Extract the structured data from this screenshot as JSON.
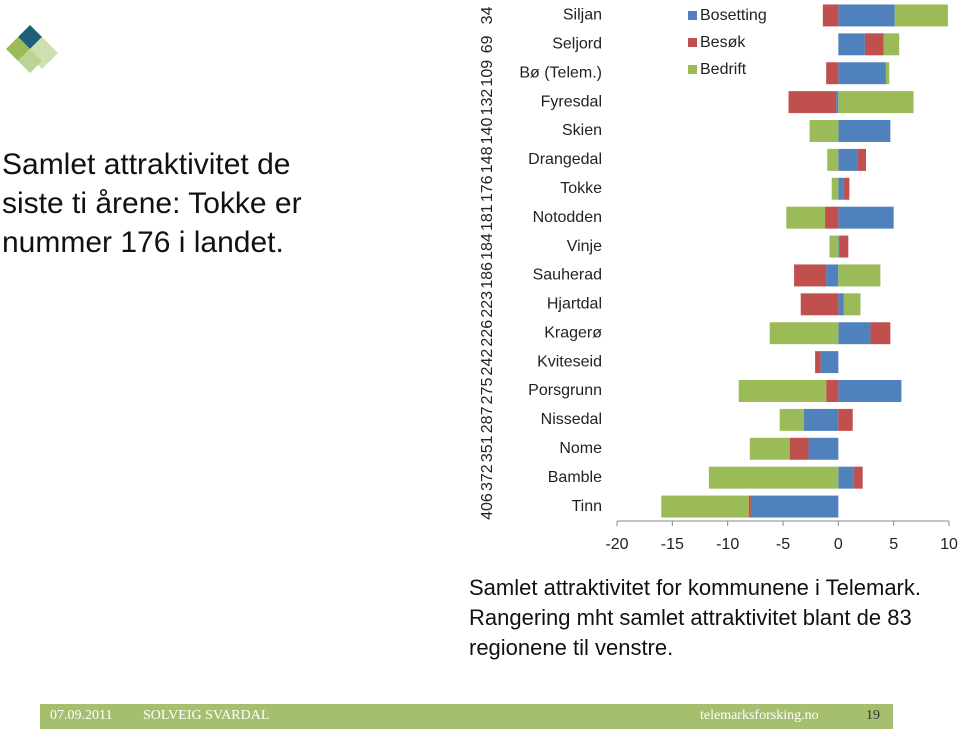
{
  "slide": {
    "title": "Samlet attraktivitet de siste ti årene: Tokke er nummer 176 i landet.",
    "caption": "Samlet attraktivitet for kommunene i Telemark. Rangering mht samlet attraktivitet blant de 83 regionene til venstre."
  },
  "chart_data": {
    "type": "bar",
    "orientation": "horizontal",
    "stacked": "diverging",
    "categories": [
      "Siljan",
      "Seljord",
      "Bø (Telem.)",
      "Fyresdal",
      "Skien",
      "Drangedal",
      "Tokke",
      "Notodden",
      "Vinje",
      "Sauherad",
      "Hjartdal",
      "Kragerø",
      "Kviteseid",
      "Porsgrunn",
      "Nissedal",
      "Nome",
      "Bamble",
      "Tinn"
    ],
    "ranks": [
      34,
      69,
      109,
      132,
      140,
      148,
      176,
      181,
      184,
      186,
      223,
      226,
      242,
      275,
      287,
      351,
      372,
      406
    ],
    "series": [
      {
        "name": "Bosetting",
        "color": "#4f81bd",
        "values": [
          5.1,
          2.4,
          4.3,
          -0.2,
          4.7,
          1.7,
          0.5,
          5.0,
          0.1,
          -1.1,
          0.5,
          2.9,
          -1.6,
          5.7,
          -3.1,
          -2.7,
          1.4,
          -7.9
        ]
      },
      {
        "name": "Besøk",
        "color": "#c0504d",
        "values": [
          -1.4,
          1.7,
          -1.1,
          -4.3,
          0,
          0.8,
          0.5,
          -1.2,
          0.8,
          -2.9,
          -3.4,
          1.8,
          -0.5,
          -1.1,
          1.3,
          -1.7,
          0.8,
          -0.2
        ]
      },
      {
        "name": "Bedrift",
        "color": "#9bbb59",
        "values": [
          4.8,
          1.4,
          0.3,
          6.8,
          -2.6,
          -1.0,
          -0.6,
          -3.5,
          -0.8,
          3.8,
          1.5,
          -6.2,
          0,
          -7.9,
          -2.2,
          -3.6,
          -11.7,
          -7.9
        ]
      }
    ],
    "xlim": [
      -20,
      10
    ],
    "xticks": [
      -20,
      -15,
      -10,
      -5,
      0,
      5,
      10
    ],
    "legend": "top-left"
  },
  "footer": {
    "date": "07.09.2011",
    "author": "SOLVEIG SVARDAL",
    "site": "telemarksforsking.no",
    "page": "19"
  }
}
